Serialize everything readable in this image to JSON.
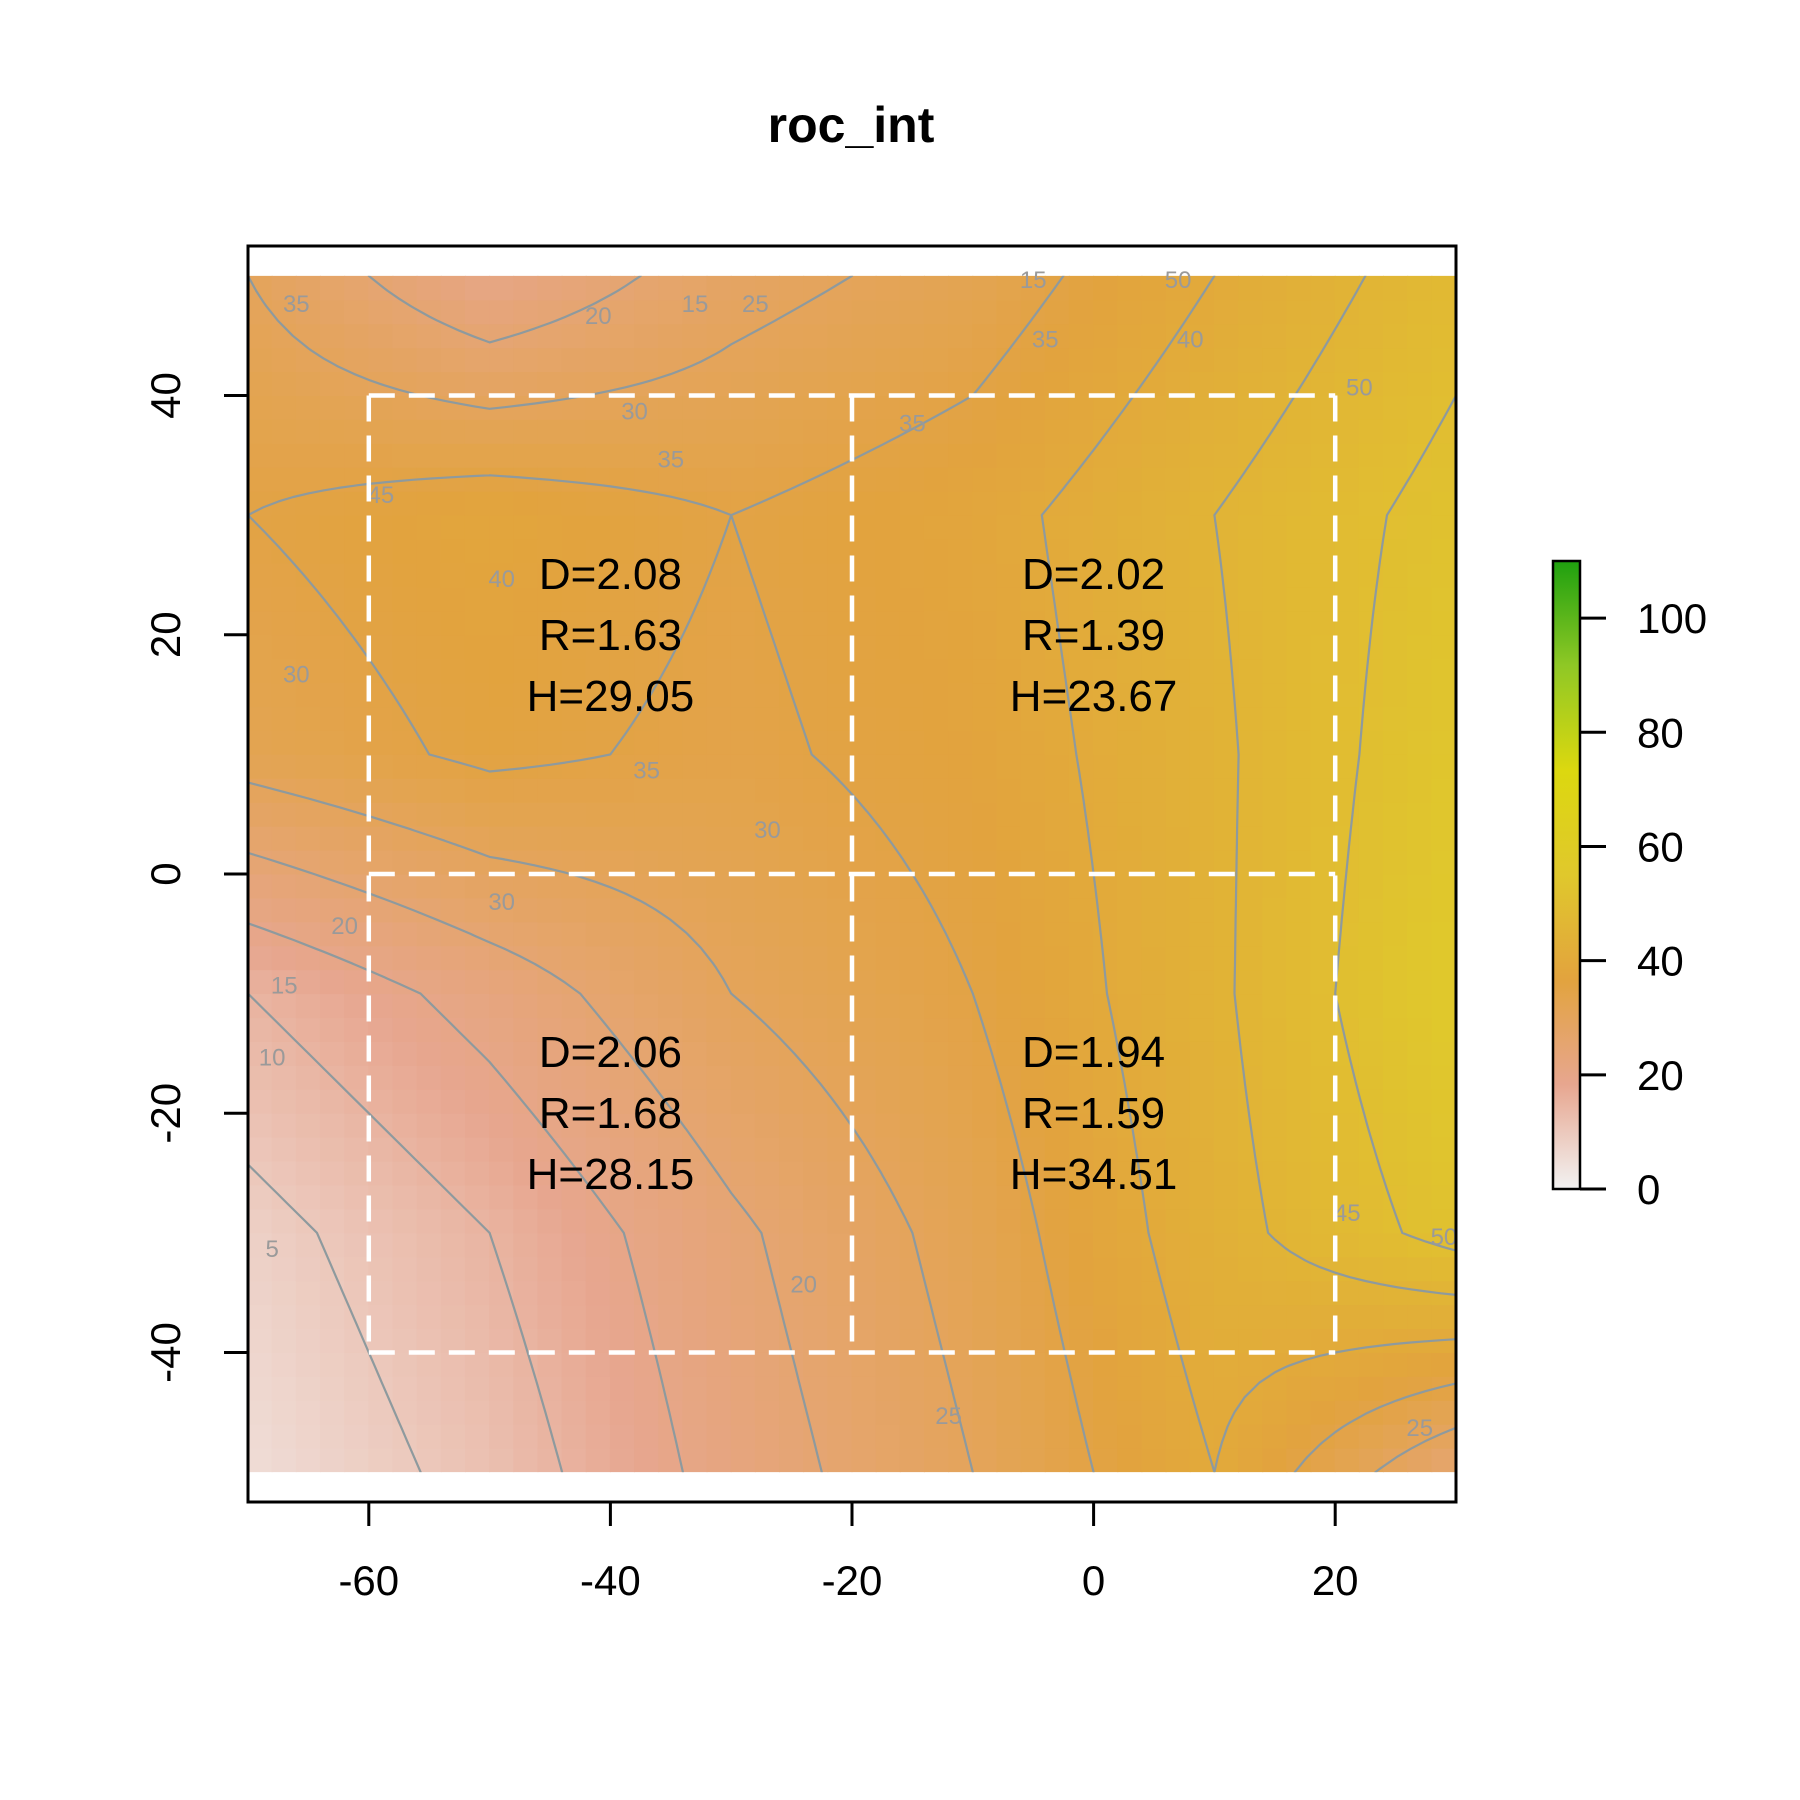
{
  "chart_data": {
    "type": "heatmap",
    "title": "roc_int",
    "x_ticks": [
      -60,
      -40,
      -20,
      0,
      20
    ],
    "y_ticks": [
      -40,
      -20,
      0,
      20,
      40
    ],
    "xlim": [
      -70,
      30
    ],
    "ylim": [
      -52.5,
      52.5
    ],
    "raster_extent": {
      "x": [
        -70,
        30
      ],
      "y": [
        -50,
        50
      ]
    },
    "legend": {
      "position": "right",
      "range": [
        0,
        110
      ],
      "ticks": [
        0,
        20,
        40,
        60,
        80,
        100
      ],
      "colors": [
        "#f2f2f2",
        "#e7a68f",
        "#e2a33e",
        "#e0c82c",
        "#dcd80f",
        "#8fc825",
        "#1fa00f"
      ]
    },
    "value_grid": {
      "x": [
        -70,
        -50,
        -30,
        -10,
        10,
        30
      ],
      "y": [
        50,
        30,
        10,
        -10,
        -30,
        -50
      ],
      "values": [
        [
          30,
          20,
          28,
          32,
          40,
          48
        ],
        [
          35,
          38,
          35,
          38,
          45,
          52
        ],
        [
          32,
          36,
          34,
          37,
          44,
          54
        ],
        [
          15,
          22,
          30,
          35,
          44,
          56
        ],
        [
          8,
          15,
          24,
          32,
          43,
          52
        ],
        [
          5,
          12,
          22,
          30,
          40,
          25
        ]
      ]
    },
    "grid_lines": {
      "x": [
        -60,
        -20,
        20
      ],
      "y": [
        40,
        0,
        -40
      ]
    },
    "quadrants": [
      {
        "x": -40,
        "y": 20,
        "lines": [
          "D=2.08",
          "R=1.63",
          "H=29.05"
        ]
      },
      {
        "x": 0,
        "y": 20,
        "lines": [
          "D=2.02",
          "R=1.39",
          "H=23.67"
        ]
      },
      {
        "x": -40,
        "y": -20,
        "lines": [
          "D=2.06",
          "R=1.68",
          "H=28.15"
        ]
      },
      {
        "x": 0,
        "y": -20,
        "lines": [
          "D=1.94",
          "R=1.59",
          "H=34.51"
        ]
      }
    ],
    "contour_labels": [
      {
        "text": "15",
        "x": -33,
        "y": 47
      },
      {
        "text": "20",
        "x": -41,
        "y": 46
      },
      {
        "text": "25",
        "x": -28,
        "y": 47
      },
      {
        "text": "15",
        "x": -5,
        "y": 49
      },
      {
        "text": "50",
        "x": 7,
        "y": 49
      },
      {
        "text": "35",
        "x": -66,
        "y": 47
      },
      {
        "text": "35",
        "x": -4,
        "y": 44
      },
      {
        "text": "40",
        "x": 8,
        "y": 44
      },
      {
        "text": "30",
        "x": -38,
        "y": 38
      },
      {
        "text": "35",
        "x": -35,
        "y": 34
      },
      {
        "text": "35",
        "x": -15,
        "y": 37
      },
      {
        "text": "50",
        "x": 22,
        "y": 40
      },
      {
        "text": "45",
        "x": -59,
        "y": 31
      },
      {
        "text": "40",
        "x": -49,
        "y": 24
      },
      {
        "text": "30",
        "x": -66,
        "y": 16
      },
      {
        "text": "35",
        "x": -37,
        "y": 8
      },
      {
        "text": "30",
        "x": -27,
        "y": 3
      },
      {
        "text": "30",
        "x": -49,
        "y": -3
      },
      {
        "text": "20",
        "x": -62,
        "y": -5
      },
      {
        "text": "15",
        "x": -67,
        "y": -10
      },
      {
        "text": "10",
        "x": -68,
        "y": -16
      },
      {
        "text": "5",
        "x": -68,
        "y": -32
      },
      {
        "text": "20",
        "x": -24,
        "y": -35
      },
      {
        "text": "25",
        "x": -12,
        "y": -46
      },
      {
        "text": "45",
        "x": 21,
        "y": -29
      },
      {
        "text": "50",
        "x": 29,
        "y": -31
      },
      {
        "text": "25",
        "x": 27,
        "y": -47
      }
    ]
  }
}
